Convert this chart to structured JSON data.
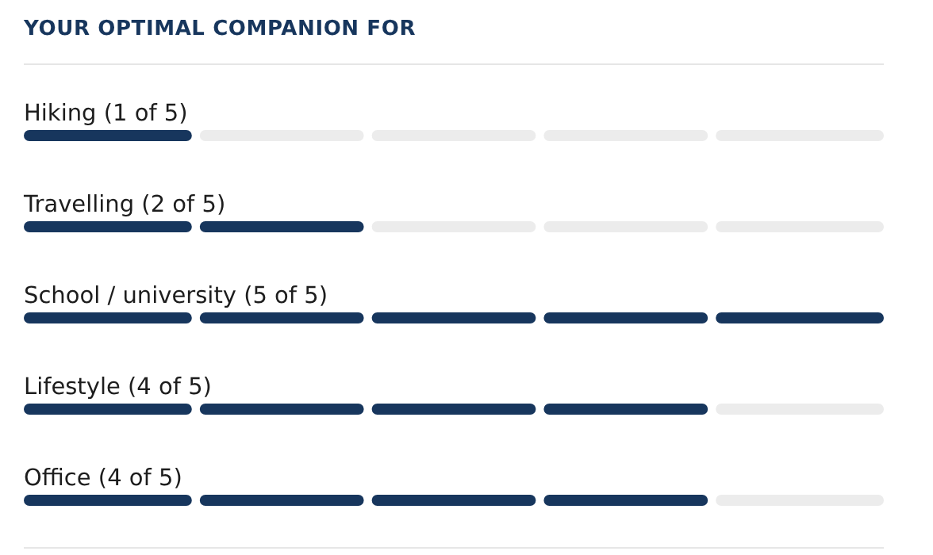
{
  "chart_data": {
    "type": "other",
    "title": "YOUR OPTIMAL COMPANION FOR",
    "categories": [
      "Hiking",
      "Travelling",
      "School / university",
      "Lifestyle",
      "Office"
    ],
    "values": [
      1,
      2,
      5,
      4,
      4
    ],
    "value_labels": [
      "(1 of 5)",
      "(2 of 5)",
      "(5 of 5)",
      "(4 of 5)",
      "(4 of 5)"
    ],
    "color": "#17365d"
  }
}
